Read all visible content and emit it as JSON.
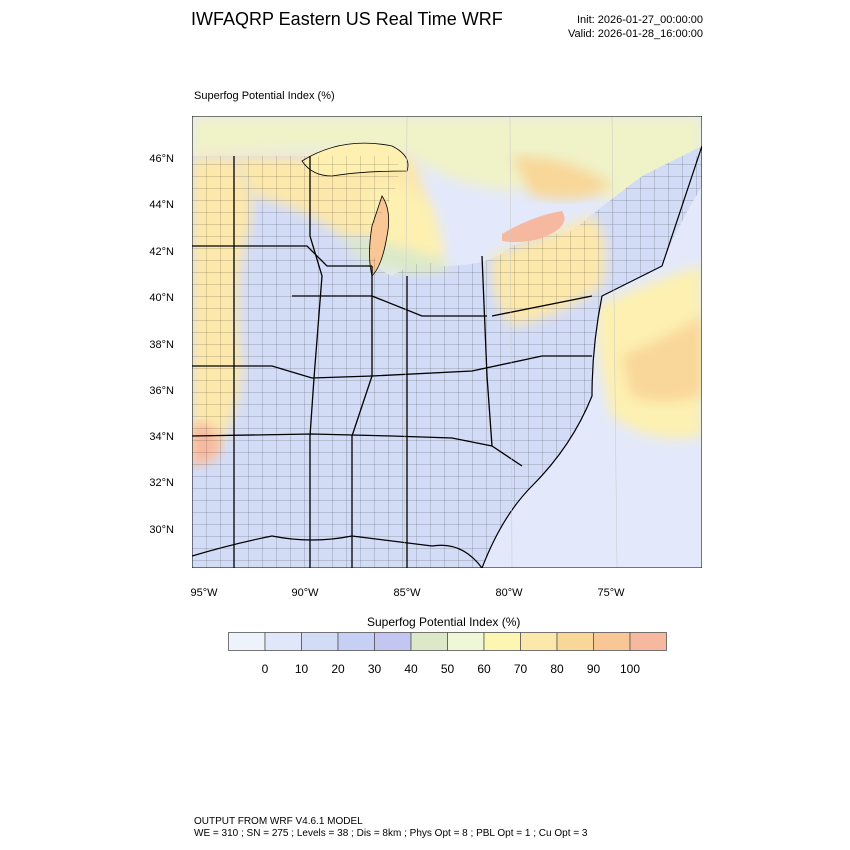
{
  "title": "IWFAQRP Eastern US Real Time WRF",
  "init_label": "Init: 2026-01-27_00:00:00",
  "valid_label": "Valid: 2026-01-28_16:00:00",
  "map_field_label": "Superfog Potential Index   (%)",
  "lat_ticks": [
    "46°N",
    "44°N",
    "42°N",
    "40°N",
    "38°N",
    "36°N",
    "34°N",
    "32°N",
    "30°N"
  ],
  "lon_ticks": [
    "95°W",
    "90°W",
    "85°W",
    "80°W",
    "75°W"
  ],
  "colorbar": {
    "title": "Superfog Potential Index  (%)",
    "colors": [
      "#eef2fb",
      "#e1e7fa",
      "#d3dcf7",
      "#c6cff4",
      "#c3c6f1",
      "#dbe9c9",
      "#eef7d6",
      "#fdf6b3",
      "#fde8ab",
      "#f8d799",
      "#f9c796",
      "#f7b8a0"
    ],
    "tick_labels": [
      "0",
      "10",
      "20",
      "30",
      "40",
      "50",
      "60",
      "70",
      "80",
      "90",
      "100"
    ]
  },
  "colors": {
    "water": "#e3e9fa",
    "land_low": "#d3dcf7",
    "land_mid": "#c6cff4",
    "high": "#fde8ab",
    "very_high": "#f8d799",
    "max": "#f7b8a0",
    "mid_green": "#dbe9c9"
  },
  "footer_line1": "OUTPUT FROM WRF V4.6.1 MODEL",
  "footer_line2": "WE = 310 ; SN = 275 ; Levels = 38 ; Dis = 8km ; Phys Opt = 8 ; PBL Opt = 1 ; Cu Opt = 3"
}
